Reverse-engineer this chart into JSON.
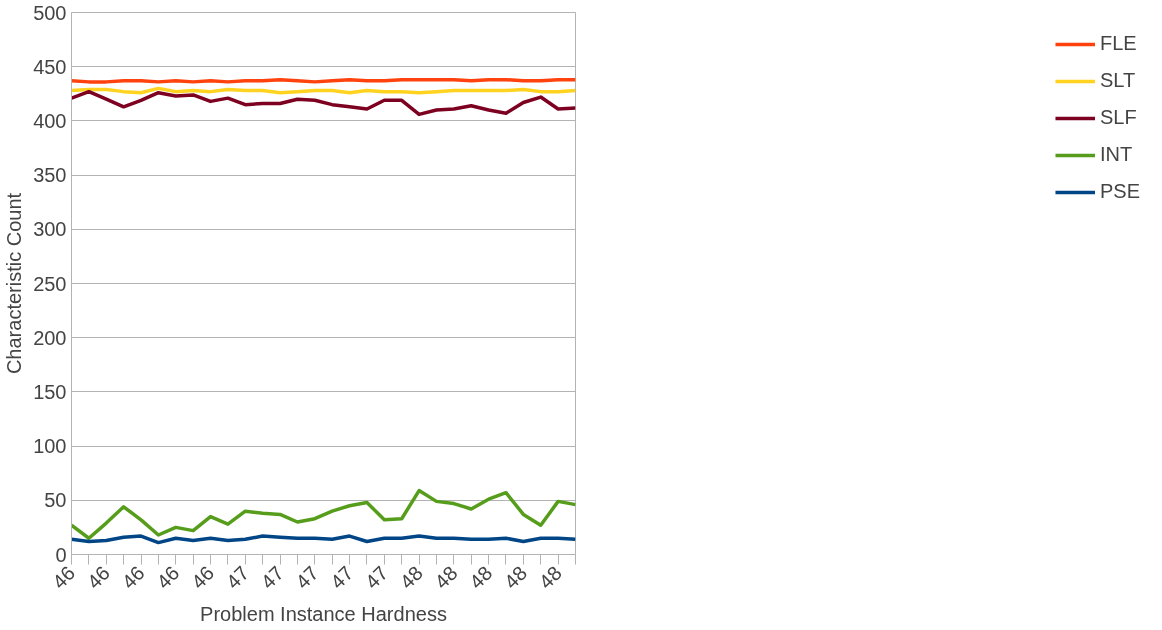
{
  "chart_data": {
    "type": "line",
    "xlabel": "Problem Instance Hardness",
    "ylabel": "Characteristic Count",
    "categories": [
      "46",
      null,
      "46",
      null,
      "46",
      null,
      "46",
      null,
      "46",
      null,
      "47",
      null,
      "47",
      null,
      "47",
      null,
      "47",
      null,
      "47",
      null,
      "48",
      null,
      "48",
      null,
      "48",
      null,
      "48",
      null,
      "48",
      null
    ],
    "ylim": [
      0,
      500
    ],
    "yticks": [
      0,
      50,
      100,
      150,
      200,
      250,
      300,
      350,
      400,
      450,
      500
    ],
    "grid": "y",
    "legend": "right",
    "marker": "none",
    "line_style": "solid",
    "series": [
      {
        "name": "FLE",
        "color": "#ff420e",
        "values": [
          437,
          436,
          436,
          437,
          437,
          436,
          437,
          436,
          437,
          436,
          437,
          437,
          438,
          437,
          436,
          437,
          438,
          437,
          437,
          438,
          438,
          438,
          438,
          437,
          438,
          438,
          437,
          437,
          438,
          438
        ]
      },
      {
        "name": "SLT",
        "color": "#ffd320",
        "values": [
          428,
          429,
          429,
          427,
          426,
          430,
          427,
          428,
          427,
          429,
          428,
          428,
          426,
          427,
          428,
          428,
          426,
          428,
          427,
          427,
          426,
          427,
          428,
          428,
          428,
          428,
          429,
          427,
          427,
          428
        ]
      },
      {
        "name": "SLF",
        "color": "#7e0021",
        "values": [
          421,
          427,
          420,
          413,
          419,
          426,
          423,
          424,
          418,
          421,
          415,
          416,
          416,
          420,
          419,
          415,
          413,
          411,
          419,
          419,
          406,
          410,
          411,
          414,
          410,
          407,
          417,
          422,
          411,
          412
        ]
      },
      {
        "name": "INT",
        "color": "#579d1c",
        "values": [
          27,
          15,
          29,
          44,
          32,
          18,
          25,
          22,
          35,
          28,
          40,
          38,
          37,
          30,
          33,
          40,
          45,
          48,
          32,
          33,
          59,
          49,
          47,
          42,
          51,
          57,
          37,
          27,
          49,
          46
        ]
      },
      {
        "name": "PSE",
        "color": "#004586",
        "values": [
          14,
          12,
          13,
          16,
          17,
          11,
          15,
          13,
          15,
          13,
          14,
          17,
          16,
          15,
          15,
          14,
          17,
          12,
          15,
          15,
          17,
          15,
          15,
          14,
          14,
          15,
          12,
          15,
          15,
          14
        ]
      }
    ]
  }
}
